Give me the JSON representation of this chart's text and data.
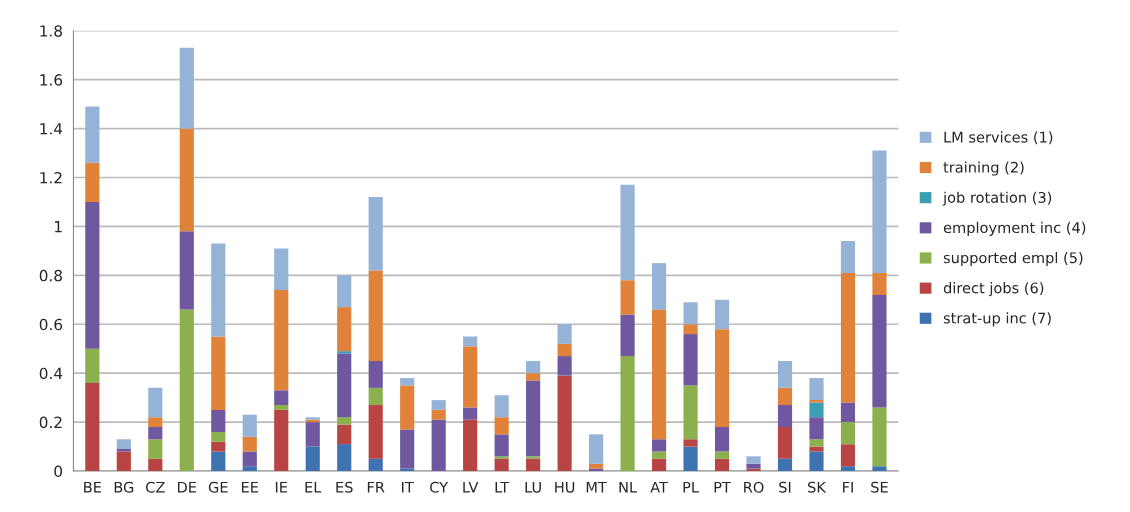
{
  "chart_data": {
    "type": "bar",
    "stacked": true,
    "categories": [
      "BE",
      "BG",
      "CZ",
      "DE",
      "GE",
      "EE",
      "IE",
      "EL",
      "ES",
      "FR",
      "IT",
      "CY",
      "LV",
      "LT",
      "LU",
      "HU",
      "MT",
      "NL",
      "AT",
      "PL",
      "PT",
      "RO",
      "SI",
      "SK",
      "FI",
      "SE"
    ],
    "series": [
      {
        "name": "strat-up inc (7)",
        "color": "#3f72b0",
        "values": [
          0,
          0,
          0,
          0,
          0.08,
          0.02,
          0,
          0.1,
          0.11,
          0.05,
          0.01,
          0,
          0,
          0,
          0,
          0,
          0,
          0,
          0,
          0.1,
          0,
          0,
          0.05,
          0.08,
          0.02,
          0.02
        ]
      },
      {
        "name": "direct jobs (6)",
        "color": "#b84543",
        "values": [
          0.36,
          0.08,
          0.05,
          0,
          0.04,
          0,
          0.25,
          0,
          0.08,
          0.22,
          0,
          0,
          0.21,
          0.05,
          0.05,
          0.39,
          0,
          0,
          0.05,
          0.03,
          0.05,
          0.01,
          0.13,
          0.02,
          0.09,
          0
        ]
      },
      {
        "name": "supported empl (5)",
        "color": "#8bb04d",
        "values": [
          0.14,
          0,
          0.08,
          0.66,
          0.04,
          0,
          0.02,
          0,
          0.03,
          0.07,
          0,
          0,
          0,
          0.01,
          0.01,
          0,
          0,
          0.47,
          0.03,
          0.22,
          0.03,
          0,
          0,
          0.03,
          0.09,
          0.24
        ]
      },
      {
        "name": "employment inc (4)",
        "color": "#7058a0",
        "values": [
          0.6,
          0.01,
          0.05,
          0.32,
          0.09,
          0.06,
          0.06,
          0.1,
          0.26,
          0.11,
          0.16,
          0.21,
          0.05,
          0.09,
          0.31,
          0.08,
          0.01,
          0.17,
          0.05,
          0.21,
          0.1,
          0.02,
          0.09,
          0.09,
          0.08,
          0.46
        ]
      },
      {
        "name": "job rotation (3)",
        "color": "#3a9fb5",
        "values": [
          0,
          0,
          0,
          0,
          0,
          0,
          0,
          0,
          0.01,
          0,
          0,
          0,
          0,
          0,
          0,
          0,
          0,
          0,
          0,
          0,
          0,
          0,
          0,
          0.06,
          0,
          0
        ]
      },
      {
        "name": "training (2)",
        "color": "#e0823a",
        "values": [
          0.16,
          0,
          0.04,
          0.42,
          0.3,
          0.06,
          0.41,
          0.01,
          0.18,
          0.37,
          0.18,
          0.04,
          0.25,
          0.07,
          0.03,
          0.05,
          0.02,
          0.14,
          0.53,
          0.04,
          0.4,
          0,
          0.07,
          0.01,
          0.53,
          0.09
        ]
      },
      {
        "name": "LM services (1)",
        "color": "#95b3d7",
        "values": [
          0.23,
          0.04,
          0.12,
          0.33,
          0.38,
          0.09,
          0.17,
          0.01,
          0.13,
          0.3,
          0.03,
          0.04,
          0.04,
          0.09,
          0.05,
          0.08,
          0.12,
          0.39,
          0.19,
          0.09,
          0.12,
          0.03,
          0.11,
          0.09,
          0.13,
          0.5
        ]
      }
    ],
    "ylim": [
      0,
      1.8
    ],
    "yticks": [
      0,
      0.2,
      0.4,
      0.6,
      0.8,
      1,
      1.2,
      1.4,
      1.6,
      1.8
    ],
    "grid": "y",
    "legend": "right"
  }
}
